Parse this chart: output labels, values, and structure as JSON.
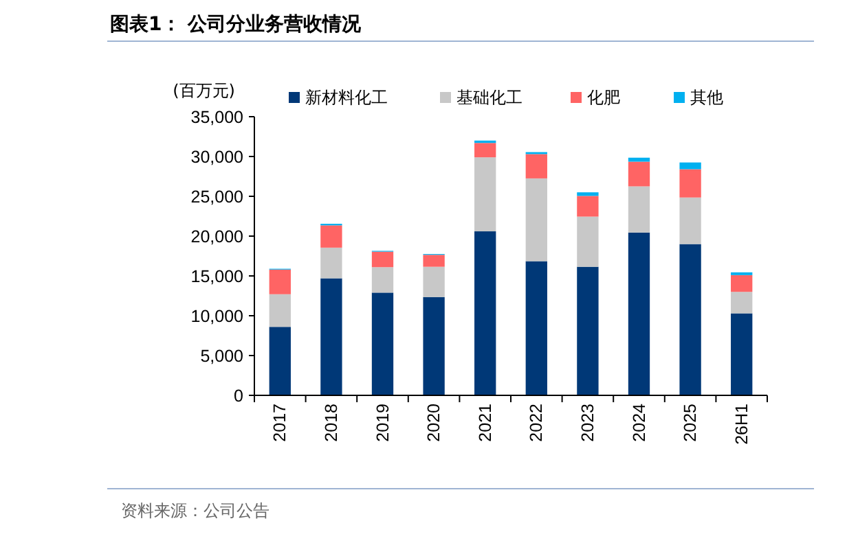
{
  "chart_data": {
    "type": "bar",
    "title": "图表1：  公司分业务营收情况",
    "ylabel": "(百万元)",
    "stacked": true,
    "categories": [
      "2017",
      "2018",
      "2019",
      "2020",
      "2021",
      "2022",
      "2023",
      "2024",
      "2025",
      "26H1"
    ],
    "series": [
      {
        "name": "新材料化工",
        "color": "#003877",
        "values": [
          8600,
          14700,
          12900,
          12350,
          20600,
          16850,
          16150,
          20450,
          19000,
          10300
        ]
      },
      {
        "name": "基础化工",
        "color": "#c8c8c8",
        "values": [
          4100,
          3850,
          3200,
          3800,
          9300,
          10400,
          6300,
          5800,
          5850,
          2700
        ]
      },
      {
        "name": "化肥",
        "color": "#ff6464",
        "values": [
          3100,
          2800,
          1950,
          1500,
          1800,
          3050,
          2600,
          3100,
          3550,
          2100
        ]
      },
      {
        "name": "其他",
        "color": "#00b0f0",
        "values": [
          100,
          200,
          100,
          100,
          300,
          250,
          450,
          500,
          850,
          350
        ]
      }
    ],
    "ylim": [
      0,
      35000
    ],
    "yticks": [
      {
        "value": 0,
        "label": "0"
      },
      {
        "value": 5000,
        "label": "5,000"
      },
      {
        "value": 10000,
        "label": "10,000"
      },
      {
        "value": 15000,
        "label": "15,000"
      },
      {
        "value": 20000,
        "label": "20,000"
      },
      {
        "value": 25000,
        "label": "25,000"
      },
      {
        "value": 30000,
        "label": "30,000"
      },
      {
        "value": 35000,
        "label": "35,000"
      }
    ],
    "legend": "top",
    "annotations": [
      "资料来源：公司公告"
    ]
  }
}
